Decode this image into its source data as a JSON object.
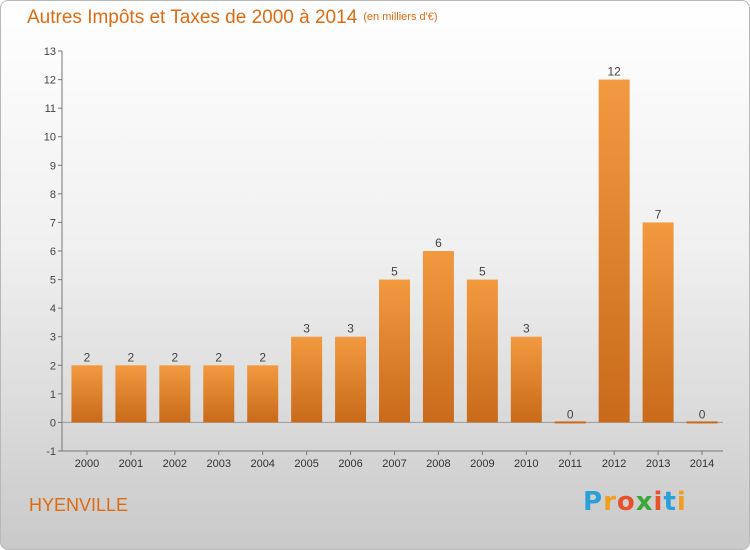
{
  "chart_data": {
    "type": "bar",
    "title": "Autres Impôts et Taxes de 2000 à 2014",
    "unit": "(en milliers d'€)",
    "categories": [
      "2000",
      "2001",
      "2002",
      "2003",
      "2004",
      "2005",
      "2006",
      "2007",
      "2008",
      "2009",
      "2010",
      "2011",
      "2012",
      "2013",
      "2014"
    ],
    "values": [
      2,
      2,
      2,
      2,
      2,
      3,
      3,
      5,
      6,
      5,
      3,
      0,
      12,
      7,
      0
    ],
    "ylim": [
      -1,
      13
    ],
    "yticks": [
      -1,
      0,
      1,
      2,
      3,
      4,
      5,
      6,
      7,
      8,
      9,
      10,
      11,
      12,
      13
    ],
    "grid": false,
    "bar_color": "#f29a40",
    "bar_color_dark": "#c96a1a"
  },
  "commune": "HYENVILLE",
  "logo": {
    "letters": [
      "P",
      "r",
      "o",
      "x",
      "i",
      "t",
      "i"
    ],
    "colors": [
      "#2aa0d8",
      "#f0a020",
      "#e8502a",
      "#3aa838",
      "#e8502a",
      "#2aa0d8",
      "#f0a020"
    ]
  }
}
